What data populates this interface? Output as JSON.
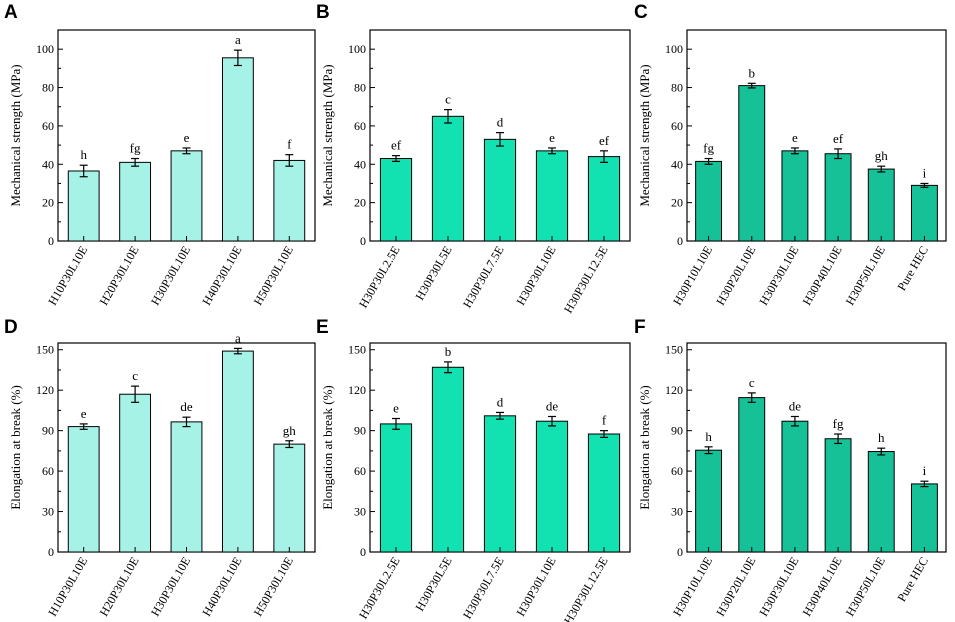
{
  "colors": {
    "col1": "#a6f2e6",
    "col2": "#12e2b2",
    "col3": "#16c198",
    "axis": "#000000"
  },
  "chart_data": [
    {
      "panel": "A",
      "type": "bar",
      "colorKey": "col1",
      "ylabel": "Mechanical strength (MPa)",
      "ylim": [
        0,
        110
      ],
      "yticks": [
        0,
        20,
        40,
        60,
        80,
        100
      ],
      "categories": [
        "H10P30L10E",
        "H20P30L10E",
        "H30P30L10E",
        "H40P30L10E",
        "H50P30L10E"
      ],
      "values": [
        36.5,
        41,
        47,
        95.5,
        42
      ],
      "errors": [
        3,
        2,
        1.5,
        4,
        3
      ],
      "letters": [
        "h",
        "fg",
        "e",
        "a",
        "f"
      ]
    },
    {
      "panel": "B",
      "type": "bar",
      "colorKey": "col2",
      "ylabel": "Mechanical strength (MPa)",
      "ylim": [
        0,
        110
      ],
      "yticks": [
        0,
        20,
        40,
        60,
        80,
        100
      ],
      "categories": [
        "H30P30L2.5E",
        "H30P30L5E",
        "H30P30L7.5E",
        "H30P30L10E",
        "H30P30L12.5E"
      ],
      "values": [
        43,
        65,
        53,
        47,
        44
      ],
      "errors": [
        1.5,
        3.5,
        3.5,
        1.5,
        3
      ],
      "letters": [
        "ef",
        "c",
        "d",
        "e",
        "ef"
      ]
    },
    {
      "panel": "C",
      "type": "bar",
      "colorKey": "col3",
      "ylabel": "Mechanical strength (MPa)",
      "ylim": [
        0,
        110
      ],
      "yticks": [
        0,
        20,
        40,
        60,
        80,
        100
      ],
      "categories": [
        "H30P10L10E",
        "H30P20L10E",
        "H30P30L10E",
        "H30P40L10E",
        "H30P50L10E",
        "Pure HEC"
      ],
      "values": [
        41.5,
        81,
        47,
        45.5,
        37.5,
        29
      ],
      "errors": [
        1.5,
        1.2,
        1.5,
        2.5,
        1.5,
        1
      ],
      "letters": [
        "fg",
        "b",
        "e",
        "ef",
        "gh",
        "i"
      ]
    },
    {
      "panel": "D",
      "type": "bar",
      "colorKey": "col1",
      "ylabel": "Elongation at break (%)",
      "ylim": [
        0,
        155
      ],
      "yticks": [
        0,
        30,
        60,
        90,
        120,
        150
      ],
      "categories": [
        "H10P30L10E",
        "H20P30L10E",
        "H30P30L10E",
        "H40P30L10E",
        "H50P30L10E"
      ],
      "values": [
        93,
        117,
        96.5,
        149,
        80
      ],
      "errors": [
        2,
        6,
        3.5,
        2,
        2.5
      ],
      "letters": [
        "e",
        "c",
        "de",
        "a",
        "gh"
      ]
    },
    {
      "panel": "E",
      "type": "bar",
      "colorKey": "col2",
      "ylabel": "Elongation at break (%)",
      "ylim": [
        0,
        155
      ],
      "yticks": [
        0,
        30,
        60,
        90,
        120,
        150
      ],
      "categories": [
        "H30P30L2.5E",
        "H30P30L5E",
        "H30P30L7.5E",
        "H30P30L10E",
        "H30P30L12.5E"
      ],
      "values": [
        95,
        137,
        101,
        97,
        87.5
      ],
      "errors": [
        4,
        4,
        2.5,
        3.5,
        2.5
      ],
      "letters": [
        "e",
        "b",
        "d",
        "de",
        "f"
      ]
    },
    {
      "panel": "F",
      "type": "bar",
      "colorKey": "col3",
      "ylabel": "Elongation at break (%)",
      "ylim": [
        0,
        155
      ],
      "yticks": [
        0,
        30,
        60,
        90,
        120,
        150
      ],
      "categories": [
        "H30P10L10E",
        "H30P20L10E",
        "H30P30L10E",
        "H30P40L10E",
        "H30P50L10E",
        "Pure HEC"
      ],
      "values": [
        75.5,
        114.5,
        97,
        84,
        74.5,
        50.5
      ],
      "errors": [
        2.5,
        3.5,
        3.5,
        3.5,
        2.5,
        2
      ],
      "letters": [
        "h",
        "c",
        "de",
        "fg",
        "h",
        "i"
      ]
    }
  ]
}
